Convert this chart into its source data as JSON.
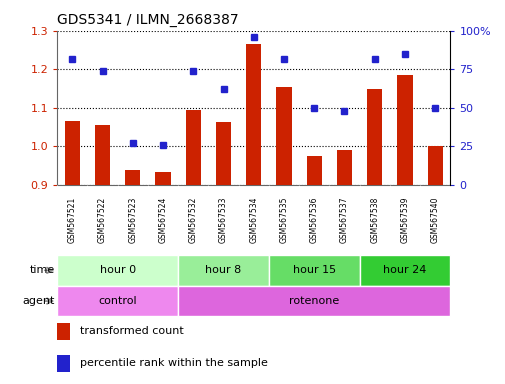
{
  "title": "GDS5341 / ILMN_2668387",
  "samples": [
    "GSM567521",
    "GSM567522",
    "GSM567523",
    "GSM567524",
    "GSM567532",
    "GSM567533",
    "GSM567534",
    "GSM567535",
    "GSM567536",
    "GSM567537",
    "GSM567538",
    "GSM567539",
    "GSM567540"
  ],
  "bar_values": [
    1.065,
    1.055,
    0.94,
    0.935,
    1.095,
    1.063,
    1.265,
    1.155,
    0.975,
    0.99,
    1.15,
    1.185,
    1.0
  ],
  "percentile_values": [
    82,
    74,
    27,
    26,
    74,
    62,
    96,
    82,
    50,
    48,
    82,
    85,
    50
  ],
  "bar_color": "#cc2200",
  "dot_color": "#2222cc",
  "ylim_left": [
    0.9,
    1.3
  ],
  "ylim_right": [
    0,
    100
  ],
  "yticks_left": [
    0.9,
    1.0,
    1.1,
    1.2,
    1.3
  ],
  "yticks_right": [
    0,
    25,
    50,
    75,
    100
  ],
  "ytick_labels_right": [
    "0",
    "25",
    "50",
    "75",
    "100%"
  ],
  "time_groups": [
    {
      "label": "hour 0",
      "start": 0,
      "end": 4,
      "color": "#ccffcc"
    },
    {
      "label": "hour 8",
      "start": 4,
      "end": 7,
      "color": "#99ee99"
    },
    {
      "label": "hour 15",
      "start": 7,
      "end": 10,
      "color": "#66dd66"
    },
    {
      "label": "hour 24",
      "start": 10,
      "end": 13,
      "color": "#33cc33"
    }
  ],
  "agent_groups": [
    {
      "label": "control",
      "start": 0,
      "end": 4,
      "color": "#ee88ee"
    },
    {
      "label": "rotenone",
      "start": 4,
      "end": 13,
      "color": "#dd66dd"
    }
  ],
  "bar_width": 0.5,
  "bg_color": "#ffffff",
  "sample_area_color": "#bbbbbb",
  "legend": [
    {
      "label": "transformed count",
      "color": "#cc2200"
    },
    {
      "label": "percentile rank within the sample",
      "color": "#2222cc"
    }
  ]
}
